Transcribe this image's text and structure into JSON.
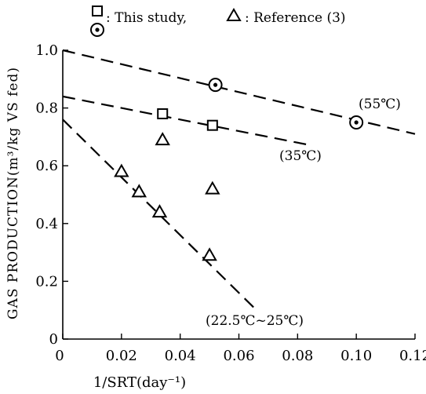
{
  "chart_data": {
    "type": "scatter",
    "xlabel": "1/SRT(day⁻¹)",
    "ylabel": "GAS PRODUCTION(m³/kg VS fed)",
    "xlim": [
      0,
      0.12
    ],
    "ylim": [
      0,
      1.0
    ],
    "xticks": [
      "0",
      "0.02",
      "0.04",
      "0.06",
      "0.08",
      "0.10",
      "0.12"
    ],
    "yticks": [
      "0",
      "0.2",
      "0.4",
      "0.6",
      "0.8",
      "1.0"
    ],
    "legend": [
      {
        "marker": "square",
        "label": ": This study,"
      },
      {
        "marker": "triangle",
        "label": ": Reference (3)"
      },
      {
        "marker": "circle-dot",
        "label": ""
      }
    ],
    "series": [
      {
        "marker": "square",
        "points": [
          {
            "x": 0.034,
            "y": 0.78
          },
          {
            "x": 0.051,
            "y": 0.74
          }
        ]
      },
      {
        "marker": "triangle",
        "points": [
          {
            "x": 0.02,
            "y": 0.58
          },
          {
            "x": 0.026,
            "y": 0.51
          },
          {
            "x": 0.033,
            "y": 0.44
          },
          {
            "x": 0.034,
            "y": 0.69
          },
          {
            "x": 0.05,
            "y": 0.29
          },
          {
            "x": 0.051,
            "y": 0.52
          }
        ]
      },
      {
        "marker": "circle-dot",
        "points": [
          {
            "x": 0.052,
            "y": 0.88
          },
          {
            "x": 0.1,
            "y": 0.75
          }
        ]
      }
    ],
    "trend_lines": [
      {
        "label": "(55℃)",
        "from": {
          "x": 0.0,
          "y": 1.0
        },
        "to": {
          "x": 0.12,
          "y": 0.71
        }
      },
      {
        "label": "(35℃)",
        "from": {
          "x": 0.0,
          "y": 0.84
        },
        "to": {
          "x": 0.085,
          "y": 0.67
        }
      },
      {
        "label": "(22.5℃~25℃)",
        "from": {
          "x": 0.0,
          "y": 0.76
        },
        "to": {
          "x": 0.066,
          "y": 0.1
        }
      }
    ]
  }
}
